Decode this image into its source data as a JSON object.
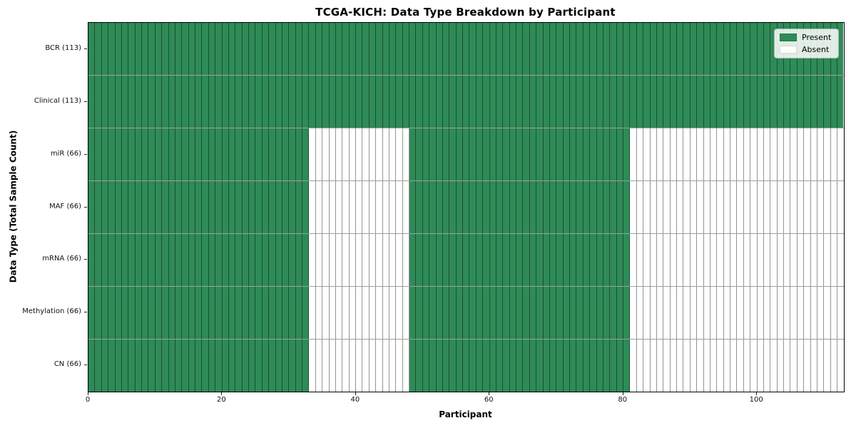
{
  "chart_data": {
    "type": "heatmap",
    "title": "TCGA-KICH: Data Type Breakdown by Participant",
    "xlabel": "Participant",
    "ylabel": "Data Type (Total Sample Count)",
    "n_participants": 113,
    "xlim": [
      0,
      113
    ],
    "x_ticks": [
      0,
      20,
      40,
      60,
      80,
      100
    ],
    "grid": true,
    "legend_position": "upper right",
    "legend": {
      "items": [
        {
          "label": "Present",
          "color": "#2e8b57"
        },
        {
          "label": "Absent",
          "color": "#ffffff"
        }
      ]
    },
    "rows": [
      {
        "label": "BCR (113)",
        "key": "bcr",
        "total_samples": 113,
        "present_segments": [
          [
            0,
            113
          ]
        ]
      },
      {
        "label": "Clinical (113)",
        "key": "clinical",
        "total_samples": 113,
        "present_segments": [
          [
            0,
            113
          ]
        ]
      },
      {
        "label": "miR (66)",
        "key": "mir",
        "total_samples": 66,
        "present_segments": [
          [
            0,
            33
          ],
          [
            48,
            81
          ]
        ]
      },
      {
        "label": "MAF (66)",
        "key": "maf",
        "total_samples": 66,
        "present_segments": [
          [
            0,
            33
          ],
          [
            48,
            81
          ]
        ]
      },
      {
        "label": "mRNA (66)",
        "key": "mrna",
        "total_samples": 66,
        "present_segments": [
          [
            0,
            33
          ],
          [
            48,
            81
          ]
        ]
      },
      {
        "label": "Methylation (66)",
        "key": "methylation",
        "total_samples": 66,
        "present_segments": [
          [
            0,
            33
          ],
          [
            48,
            81
          ]
        ]
      },
      {
        "label": "CN (66)",
        "key": "cn",
        "total_samples": 66,
        "present_segments": [
          [
            0,
            33
          ],
          [
            48,
            81
          ]
        ]
      }
    ],
    "colors": {
      "present": "#2e8b57",
      "absent": "#ffffff",
      "frame": "#000000"
    }
  }
}
